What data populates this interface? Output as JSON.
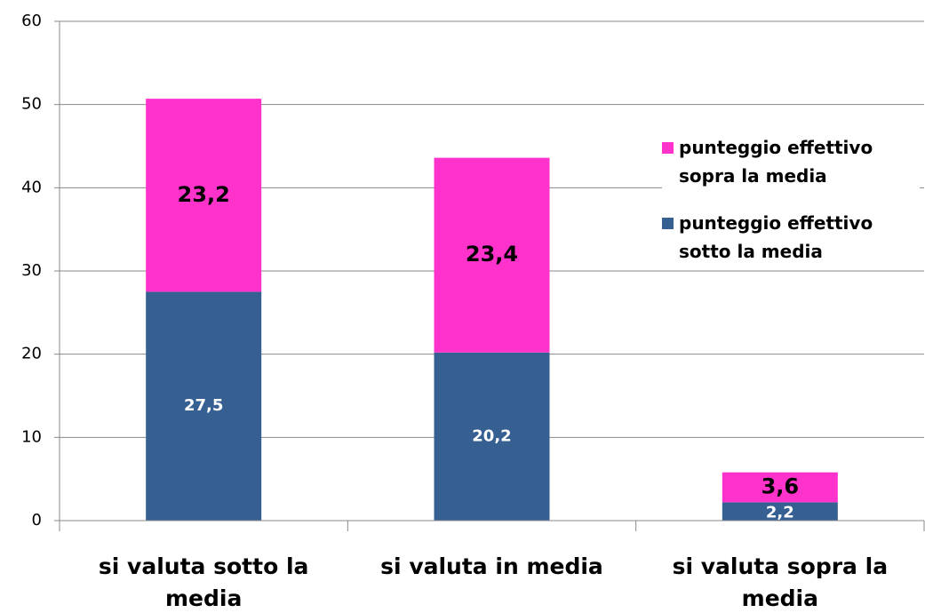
{
  "chart_data": {
    "type": "stacked_bar",
    "categories": [
      "si valuta sotto la media",
      "si valuta in media",
      "si valuta sopra la media"
    ],
    "series": [
      {
        "name": "punteggio effettivo sotto la media",
        "color": "#376092",
        "values": [
          27.5,
          20.2,
          2.2
        ],
        "value_labels": [
          "27,5",
          "20,2",
          "2,2"
        ]
      },
      {
        "name": "punteggio effettivo sopra la media",
        "color": "#ff33cc",
        "values": [
          23.2,
          23.4,
          3.6
        ],
        "value_labels": [
          "23,2",
          "23,4",
          "3,6"
        ]
      }
    ],
    "ylim": [
      0,
      60
    ],
    "yticks": [
      0,
      10,
      20,
      30,
      40,
      50,
      60
    ],
    "grid": true,
    "legend": "right"
  }
}
